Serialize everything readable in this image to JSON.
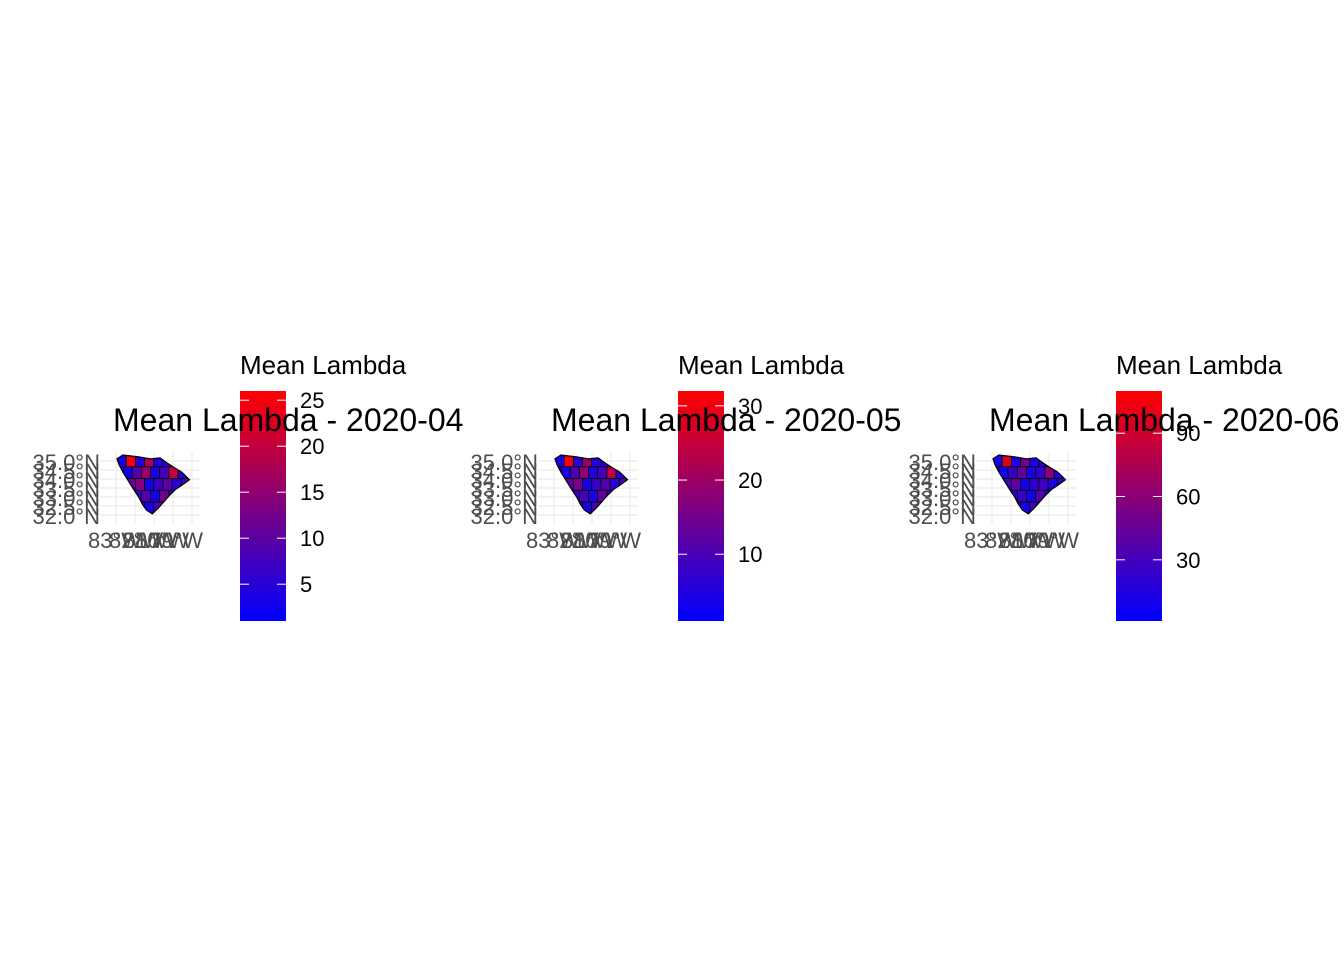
{
  "colors": {
    "low": "#0000ff",
    "high": "#ff0000",
    "grid": "#ebebeb",
    "outline": "#000000"
  },
  "panels": [
    {
      "title": "Mean Lambda - 2020-04",
      "legend": {
        "title": "Mean Lambda",
        "breaks": [
          "5",
          "10",
          "15",
          "20",
          "25"
        ],
        "break_values": [
          5,
          10,
          15,
          20,
          25
        ],
        "range": [
          1,
          26
        ]
      },
      "lat_labels": [
        "35.0°N",
        "34.5°N",
        "34.0°N",
        "33.5°N",
        "33.0°N",
        "32.5°N",
        "32.0°N"
      ],
      "lon_labels": [
        "83°W",
        "82°W",
        "81°W",
        "80°W",
        "79°W"
      ],
      "county_values": [
        3,
        25,
        5,
        18,
        4,
        6,
        22,
        7,
        12,
        3,
        9,
        16,
        4,
        8,
        20,
        5,
        6,
        11,
        14,
        3,
        7,
        10,
        5,
        8,
        15,
        4,
        6,
        9,
        3,
        12,
        5,
        7,
        4,
        6,
        8,
        3,
        9,
        5,
        4,
        6
      ]
    },
    {
      "title": "Mean Lambda - 2020-05",
      "legend": {
        "title": "Mean Lambda",
        "breaks": [
          "10",
          "20",
          "30"
        ],
        "break_values": [
          10,
          20,
          30
        ],
        "range": [
          1,
          32
        ]
      },
      "lat_labels": [
        "35.0°N",
        "34.5°N",
        "34.0°N",
        "33.5°N",
        "33.0°N",
        "32.5°N",
        "32.0°N"
      ],
      "lon_labels": [
        "83°W",
        "82°W",
        "81°W",
        "80°W",
        "79°W"
      ],
      "county_values": [
        4,
        31,
        6,
        20,
        5,
        7,
        26,
        8,
        14,
        4,
        10,
        18,
        5,
        9,
        24,
        6,
        7,
        12,
        16,
        4,
        8,
        11,
        6,
        9,
        17,
        5,
        7,
        10,
        4,
        13,
        6,
        8,
        5,
        7,
        9,
        4,
        10,
        6,
        5,
        7
      ]
    },
    {
      "title": "Mean Lambda - 2020-06",
      "legend": {
        "title": "Mean Lambda",
        "breaks": [
          "30",
          "60",
          "90"
        ],
        "break_values": [
          30,
          60,
          90
        ],
        "range": [
          1,
          110
        ]
      },
      "lat_labels": [
        "35.0°N",
        "34.5°N",
        "34.0°N",
        "33.5°N",
        "33.0°N",
        "32.5°N",
        "32.0°N"
      ],
      "lon_labels": [
        "83°W",
        "82°W",
        "81°W",
        "80°W",
        "79°W"
      ],
      "county_values": [
        10,
        95,
        14,
        50,
        12,
        16,
        70,
        18,
        40,
        10,
        25,
        45,
        12,
        22,
        60,
        15,
        18,
        30,
        42,
        10,
        20,
        28,
        14,
        22,
        100,
        12,
        18,
        26,
        10,
        35,
        15,
        20,
        12,
        80,
        22,
        10,
        28,
        14,
        12,
        90
      ]
    }
  ]
}
